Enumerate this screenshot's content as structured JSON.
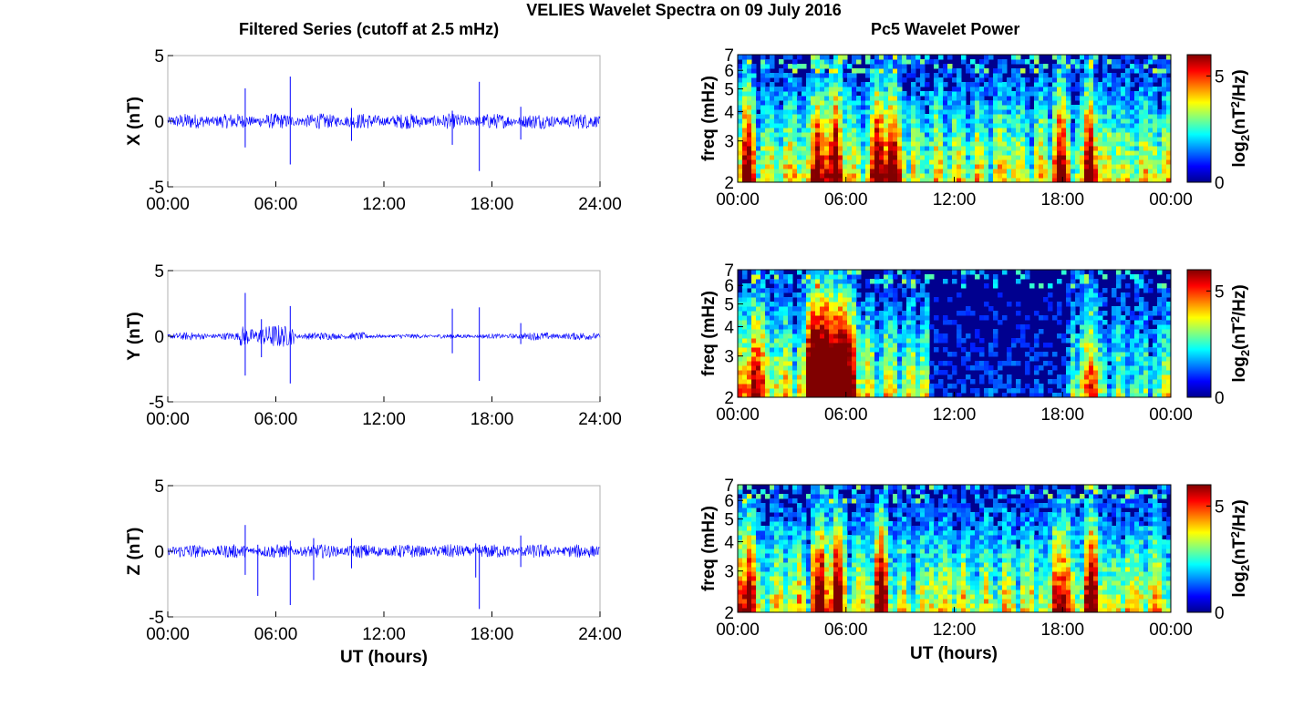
{
  "figure": {
    "title": "VELIES Wavelet Spectra on 09 July 2016",
    "left_title": "Filtered Series (cutoff at 2.5 mHz)",
    "right_title": "Pc5 Wavelet Power",
    "xlabel": "UT (hours)"
  },
  "colors": {
    "trace": "#0000ff",
    "axis": "#000000",
    "box": "#b0b0b0",
    "background_power": "#00008f"
  },
  "chart_data": [
    {
      "type": "line",
      "panel": "X",
      "ylabel": "X (nT)",
      "xlim": [
        "00:00",
        "24:00"
      ],
      "ylim": [
        -5,
        5
      ],
      "x_ticks": [
        "00:00",
        "06:00",
        "12:00",
        "18:00",
        "24:00"
      ],
      "y_ticks": [
        "5",
        "0",
        "-5"
      ],
      "baseline_amplitude": 0.5,
      "spikes": [
        {
          "t": 4.3,
          "min": -2.0,
          "max": 2.5
        },
        {
          "t": 6.8,
          "min": -3.3,
          "max": 3.4
        },
        {
          "t": 10.2,
          "min": -1.5,
          "max": 1.0
        },
        {
          "t": 15.8,
          "min": -1.8,
          "max": 0.8
        },
        {
          "t": 17.3,
          "min": -3.8,
          "max": 3.0
        },
        {
          "t": 19.6,
          "min": -1.4,
          "max": 1.1
        }
      ]
    },
    {
      "type": "line",
      "panel": "Y",
      "ylabel": "Y (nT)",
      "xlim": [
        "00:00",
        "24:00"
      ],
      "ylim": [
        -5,
        5
      ],
      "x_ticks": [
        "00:00",
        "06:00",
        "12:00",
        "18:00",
        "24:00"
      ],
      "y_ticks": [
        "5",
        "0",
        "-5"
      ],
      "baseline_amplitude": 0.25,
      "spikes": [
        {
          "t": 4.3,
          "min": -3.0,
          "max": 3.3
        },
        {
          "t": 5.2,
          "min": -1.6,
          "max": 1.3
        },
        {
          "t": 6.8,
          "min": -3.6,
          "max": 2.3
        },
        {
          "t": 15.8,
          "min": -1.3,
          "max": 2.1
        },
        {
          "t": 17.3,
          "min": -3.4,
          "max": 2.2
        },
        {
          "t": 19.6,
          "min": -0.6,
          "max": 1.0
        }
      ]
    },
    {
      "type": "line",
      "panel": "Z",
      "ylabel": "Z (nT)",
      "xlim": [
        "00:00",
        "24:00"
      ],
      "ylim": [
        -5,
        5
      ],
      "x_ticks": [
        "00:00",
        "06:00",
        "12:00",
        "18:00",
        "24:00"
      ],
      "y_ticks": [
        "5",
        "0",
        "-5"
      ],
      "baseline_amplitude": 0.45,
      "spikes": [
        {
          "t": 4.3,
          "min": -1.8,
          "max": 2.0
        },
        {
          "t": 5.0,
          "min": -3.4,
          "max": 0.5
        },
        {
          "t": 6.8,
          "min": -4.1,
          "max": 0.8
        },
        {
          "t": 8.1,
          "min": -2.2,
          "max": 1.0
        },
        {
          "t": 10.2,
          "min": -1.3,
          "max": 1.0
        },
        {
          "t": 17.1,
          "min": -2.0,
          "max": 0.6
        },
        {
          "t": 17.3,
          "min": -4.4,
          "max": 0.5
        },
        {
          "t": 19.6,
          "min": -1.2,
          "max": 1.2
        }
      ]
    },
    {
      "type": "heatmap",
      "panel": "X-power",
      "ylabel": "freq (mHz)",
      "colorbar_label": "log2(nT^2/Hz)",
      "clim": [
        0,
        6
      ],
      "colorbar_ticks": [
        "5",
        "0"
      ],
      "xlim": [
        "00:00",
        "00:00"
      ],
      "ylim": [
        2,
        7
      ],
      "y_scale": "log",
      "x_ticks": [
        "00:00",
        "06:00",
        "12:00",
        "18:00",
        "00:00"
      ],
      "y_ticks": [
        "7",
        "6",
        "5",
        "4",
        "3",
        "2"
      ],
      "activity": "high throughout the day",
      "hot_spots_hours": [
        0.5,
        4.5,
        5.5,
        7.8,
        8.6,
        17.9,
        19.6
      ]
    },
    {
      "type": "heatmap",
      "panel": "Y-power",
      "ylabel": "freq (mHz)",
      "colorbar_label": "log2(nT^2/Hz)",
      "clim": [
        0,
        6
      ],
      "colorbar_ticks": [
        "5",
        "0"
      ],
      "xlim": [
        "00:00",
        "00:00"
      ],
      "ylim": [
        2,
        7
      ],
      "y_scale": "log",
      "x_ticks": [
        "00:00",
        "06:00",
        "12:00",
        "18:00",
        "00:00"
      ],
      "y_ticks": [
        "7",
        "6",
        "5",
        "4",
        "3",
        "2"
      ],
      "activity": "strong 04:00-06:30, quiet 15:00-18:00",
      "hot_spots_hours": [
        1.0,
        4.3,
        5.0,
        5.8,
        19.5
      ]
    },
    {
      "type": "heatmap",
      "panel": "Z-power",
      "ylabel": "freq (mHz)",
      "colorbar_label": "log2(nT^2/Hz)",
      "clim": [
        0,
        6
      ],
      "colorbar_ticks": [
        "5",
        "0"
      ],
      "xlim": [
        "00:00",
        "00:00"
      ],
      "ylim": [
        2,
        7
      ],
      "y_scale": "log",
      "x_ticks": [
        "00:00",
        "06:00",
        "12:00",
        "18:00",
        "00:00"
      ],
      "y_ticks": [
        "7",
        "6",
        "5",
        "4",
        "3",
        "2"
      ],
      "activity": "high throughout the day",
      "hot_spots_hours": [
        0.5,
        4.6,
        5.5,
        7.9,
        17.9,
        19.6
      ]
    }
  ]
}
